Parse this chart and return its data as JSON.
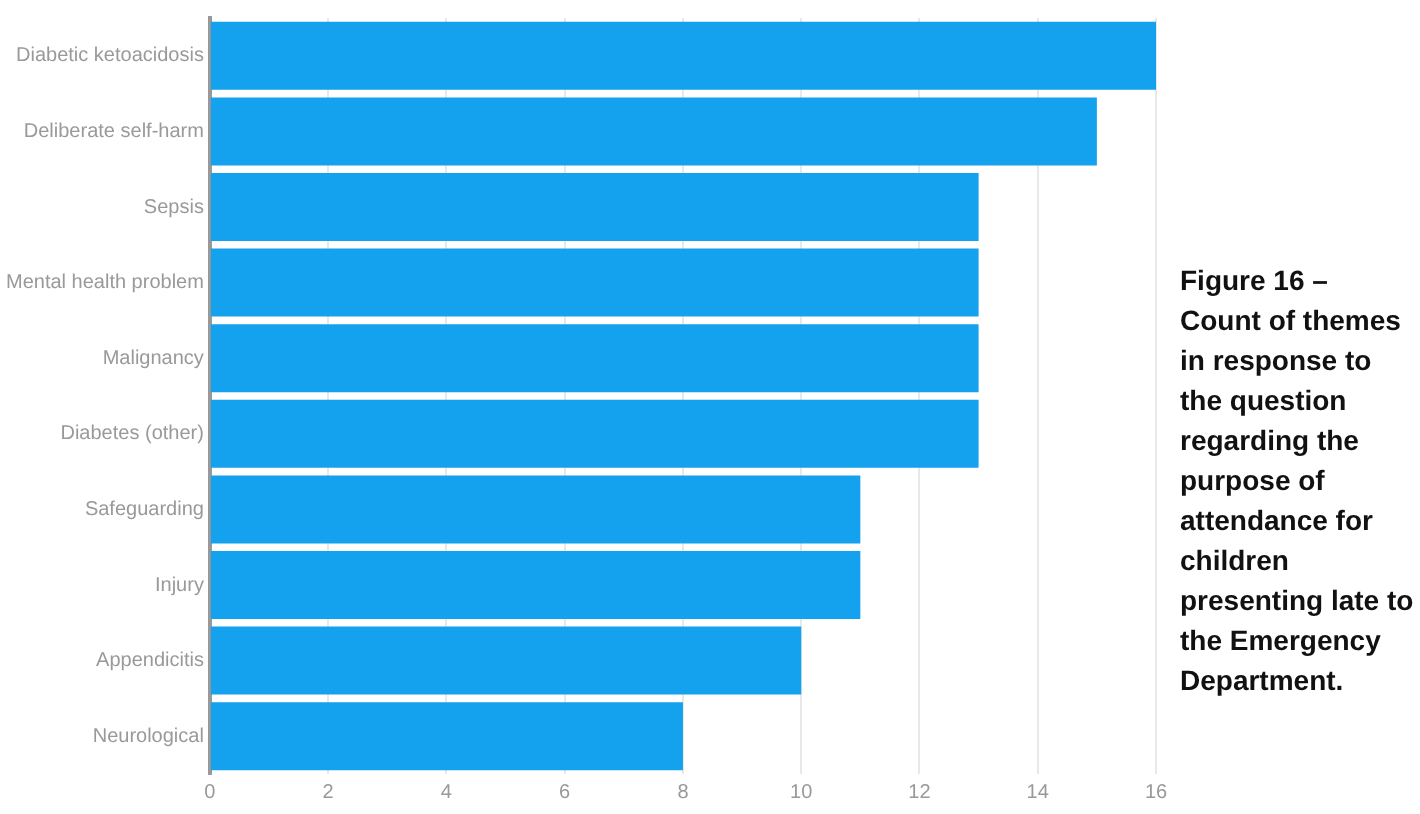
{
  "chart_data": {
    "type": "bar",
    "orientation": "horizontal",
    "categories": [
      "Diabetic ketoacidosis",
      "Deliberate self-harm",
      "Sepsis",
      "Mental health problem",
      "Malignancy",
      "Diabetes (other)",
      "Safeguarding",
      "Injury",
      "Appendicitis",
      "Neurological"
    ],
    "values": [
      16,
      15,
      13,
      13,
      13,
      13,
      11,
      11,
      10,
      8
    ],
    "color": "#14a1ed",
    "xlim": [
      0,
      16
    ],
    "xticks": [
      0,
      2,
      4,
      6,
      8,
      10,
      12,
      14,
      16
    ],
    "grid": "x",
    "legend": false,
    "annotations": [
      "Figure 16 – Count of themes in response to the question regarding the purpose of attendance for children presenting late to the Emergency Department."
    ]
  }
}
